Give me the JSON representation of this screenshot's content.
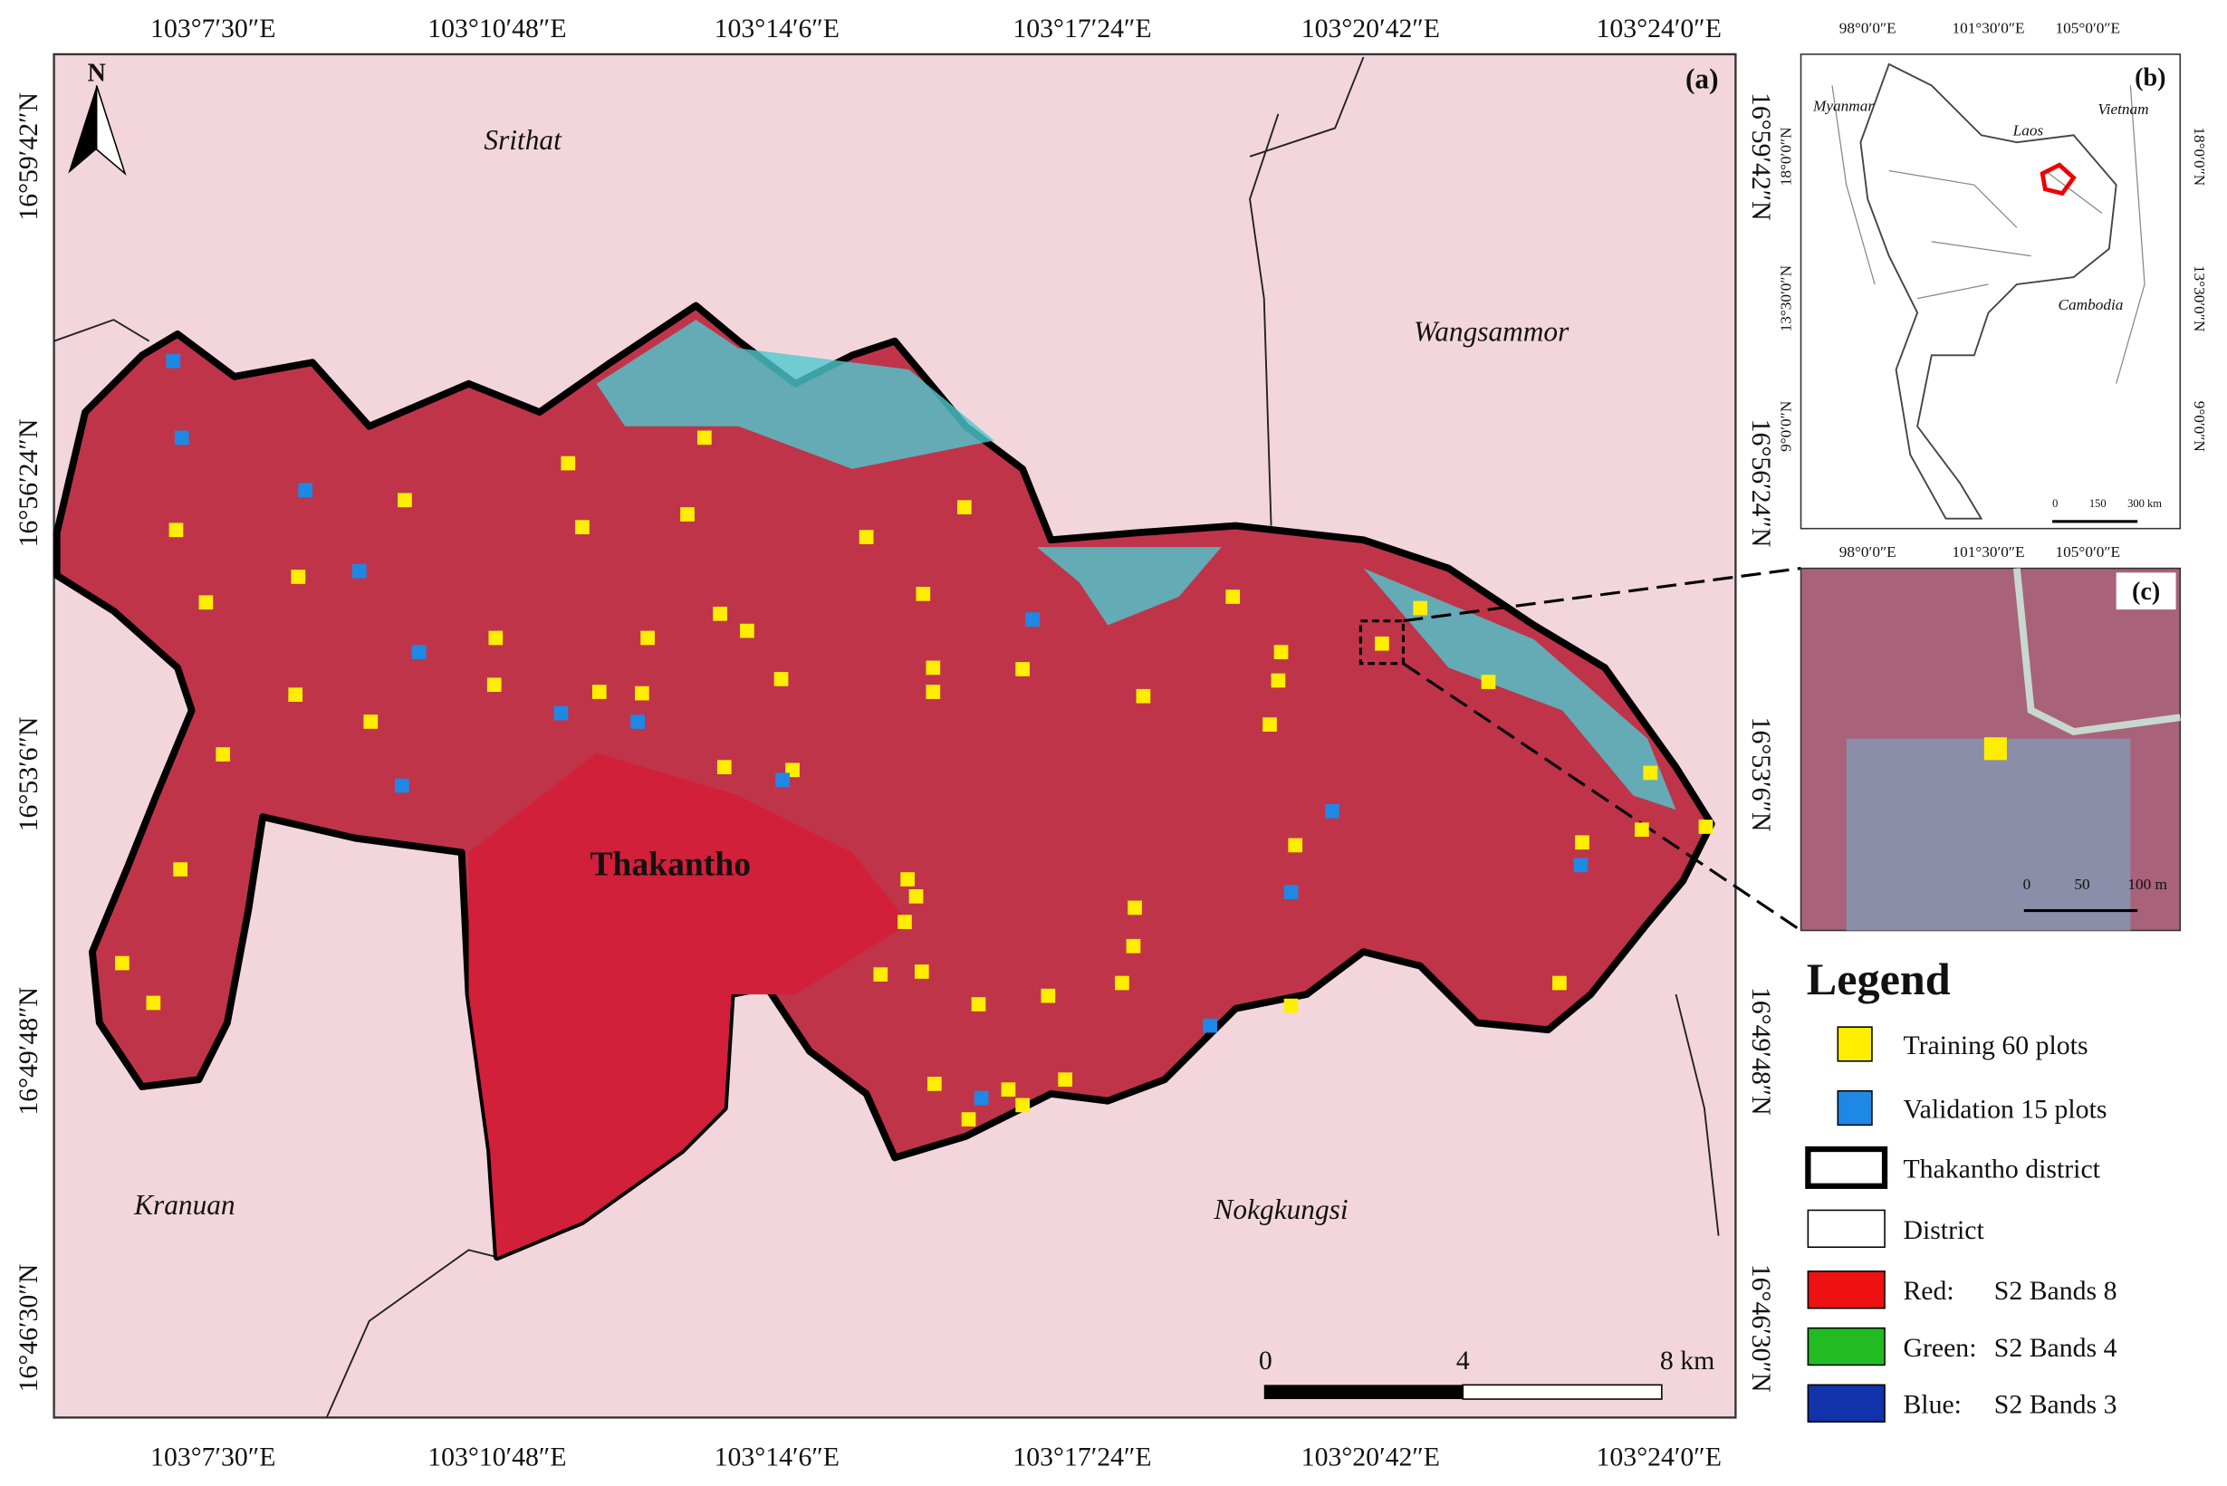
{
  "map_a": {
    "label": "(a)",
    "north": "N",
    "lon_labels": [
      "103°7′30″E",
      "103°10′48″E",
      "103°14′6″E",
      "103°17′24″E",
      "103°20′42″E",
      "103°24′0″E"
    ],
    "lat_labels": [
      "16°59′42″N",
      "16°56′24″N",
      "16°53′6″N",
      "16°49′48″N",
      "16°46′30″N"
    ],
    "places": [
      "Srithat",
      "Wangsammor",
      "Thakantho",
      "Kranuan",
      "Nokgkungsi"
    ],
    "scale_labels": [
      "0",
      "4",
      "8 km"
    ]
  },
  "map_b": {
    "label": "(b)",
    "lon_labels": [
      "98°0′0″E",
      "101°30′0″E",
      "105°0′0″E"
    ],
    "lat_labels": [
      "18°0′0″N",
      "13°30′0″N",
      "9°0′0″N"
    ],
    "countries": [
      "Myanmar",
      "Laos",
      "Vietnam",
      "Cambodia"
    ],
    "scale_labels": [
      "0",
      "150",
      "300 km"
    ]
  },
  "map_c": {
    "label": "(c)",
    "scale_labels": [
      "0",
      "50",
      "100 m"
    ]
  },
  "legend": {
    "title": "Legend",
    "items": [
      {
        "label": "Training 60 plots",
        "color": "#ffee00"
      },
      {
        "label": "Validation 15 plots",
        "color": "#1e88e5"
      },
      {
        "label": "Thakantho district",
        "color": "#ffffff"
      },
      {
        "label": "District",
        "color": "#ffffff"
      },
      {
        "channel": "Red:",
        "label": "S2 Bands 8",
        "color": "#ee1111"
      },
      {
        "channel": "Green:",
        "label": "S2 Bands 4",
        "color": "#22bb22"
      },
      {
        "channel": "Blue:",
        "label": "S2 Bands 3",
        "color": "#1133aa"
      }
    ]
  }
}
